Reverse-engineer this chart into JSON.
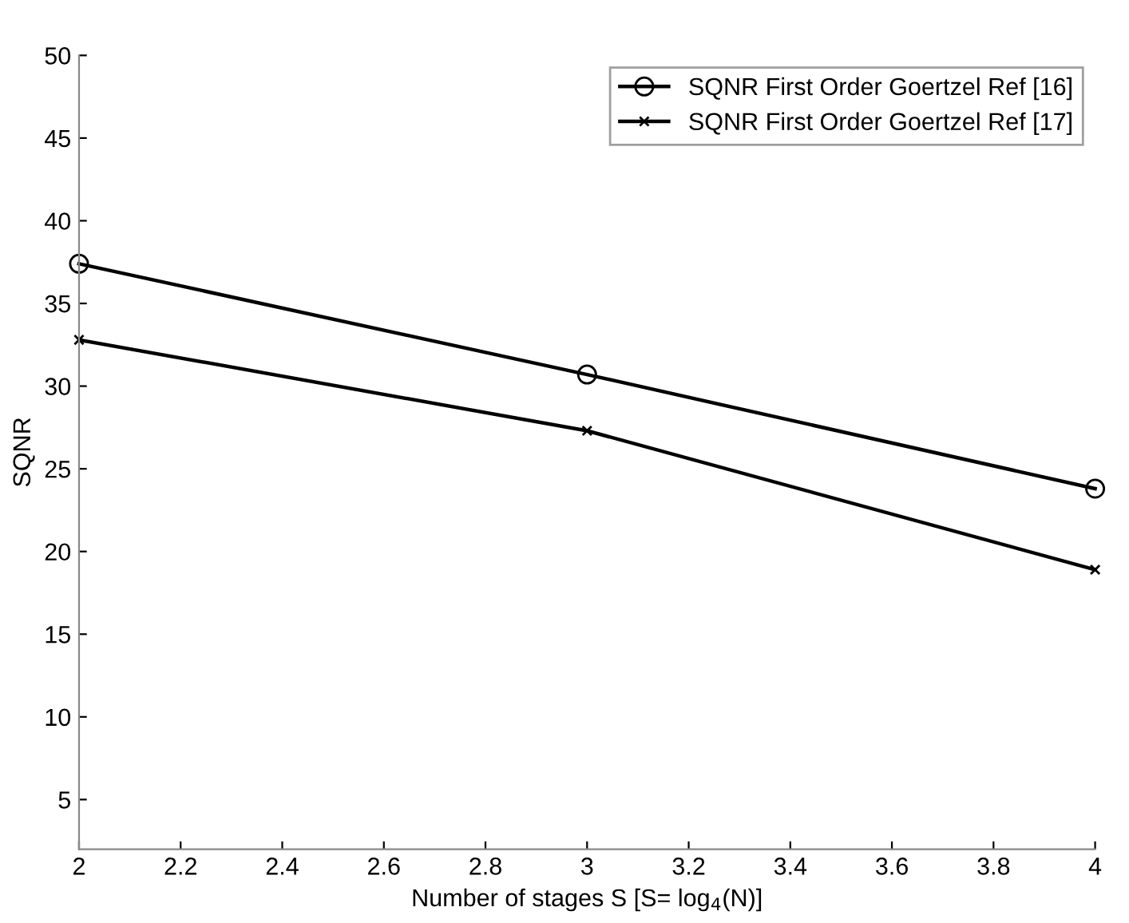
{
  "chart_data": {
    "type": "line",
    "xlabel": "Number of stages S [S= log$_{4}$(N)]",
    "ylabel": "SQNR",
    "x": [
      2,
      3,
      4
    ],
    "series": [
      {
        "name": "SQNR First Order Goertzel Ref [16]",
        "color": "#000000",
        "marker": "circle",
        "values": [
          37.4,
          30.7,
          23.8
        ]
      },
      {
        "name": "SQNR First Order Goertzel Ref [17]",
        "color": "#000000",
        "marker": "cross",
        "values": [
          32.8,
          27.3,
          18.9
        ]
      }
    ],
    "xlim": [
      2,
      4
    ],
    "xticks": [
      2,
      2.2,
      2.4,
      2.6,
      2.8,
      3,
      3.2,
      3.4,
      3.6,
      3.8,
      4
    ],
    "ylim": [
      2,
      50
    ],
    "yticks": [
      5,
      10,
      15,
      20,
      25,
      30,
      35,
      40,
      45,
      50
    ],
    "grid": false,
    "legend": "top right",
    "line_style": "solid"
  }
}
